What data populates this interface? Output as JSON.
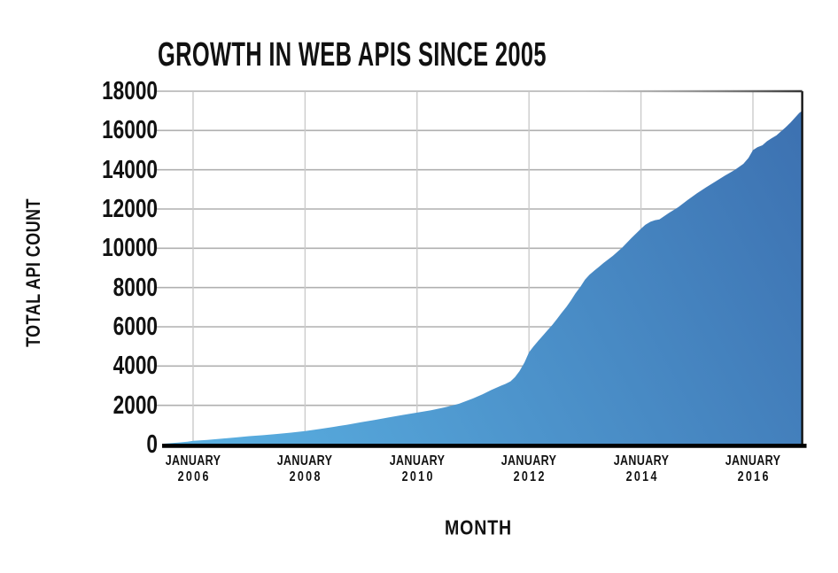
{
  "title": "GROWTH IN WEB APIS SINCE 2005",
  "chart_data": {
    "type": "area",
    "title": "GROWTH IN WEB APIS SINCE 2005",
    "xlabel": "MONTH",
    "ylabel": "TOTAL API COUNT",
    "ylim": [
      0,
      18000
    ],
    "y_ticks": [
      0,
      2000,
      4000,
      6000,
      8000,
      10000,
      12000,
      14000,
      16000,
      18000
    ],
    "x_ticks": [
      {
        "line1": "JANUARY",
        "line2": "2006",
        "value": 2006
      },
      {
        "line1": "JANUARY",
        "line2": "2008",
        "value": 2008
      },
      {
        "line1": "JANUARY",
        "line2": "2010",
        "value": 2010
      },
      {
        "line1": "JANUARY",
        "line2": "2012",
        "value": 2012
      },
      {
        "line1": "JANUARY",
        "line2": "2014",
        "value": 2014
      },
      {
        "line1": "JANUARY",
        "line2": "2016",
        "value": 2016
      }
    ],
    "x_range_years": [
      2005.45,
      2016.88
    ],
    "grid": true,
    "legend": "none",
    "series": [
      {
        "name": "Total API Count",
        "points": [
          [
            2005.45,
            40
          ],
          [
            2005.6,
            70
          ],
          [
            2005.75,
            110
          ],
          [
            2005.9,
            150
          ],
          [
            2006.0,
            190
          ],
          [
            2006.25,
            240
          ],
          [
            2006.5,
            300
          ],
          [
            2006.75,
            360
          ],
          [
            2007.0,
            430
          ],
          [
            2007.25,
            480
          ],
          [
            2007.5,
            540
          ],
          [
            2007.75,
            610
          ],
          [
            2008.0,
            690
          ],
          [
            2008.25,
            790
          ],
          [
            2008.5,
            900
          ],
          [
            2008.75,
            1010
          ],
          [
            2009.0,
            1140
          ],
          [
            2009.25,
            1260
          ],
          [
            2009.5,
            1390
          ],
          [
            2009.75,
            1510
          ],
          [
            2010.0,
            1630
          ],
          [
            2010.25,
            1750
          ],
          [
            2010.5,
            1900
          ],
          [
            2010.75,
            2080
          ],
          [
            2011.0,
            2350
          ],
          [
            2011.17,
            2560
          ],
          [
            2011.33,
            2790
          ],
          [
            2011.5,
            3000
          ],
          [
            2011.58,
            3090
          ],
          [
            2011.67,
            3220
          ],
          [
            2011.75,
            3440
          ],
          [
            2011.83,
            3740
          ],
          [
            2011.92,
            4180
          ],
          [
            2012.0,
            4700
          ],
          [
            2012.08,
            5000
          ],
          [
            2012.17,
            5300
          ],
          [
            2012.25,
            5560
          ],
          [
            2012.33,
            5820
          ],
          [
            2012.42,
            6110
          ],
          [
            2012.5,
            6400
          ],
          [
            2012.58,
            6700
          ],
          [
            2012.67,
            7020
          ],
          [
            2012.75,
            7350
          ],
          [
            2012.83,
            7700
          ],
          [
            2012.92,
            8050
          ],
          [
            2013.0,
            8400
          ],
          [
            2013.08,
            8650
          ],
          [
            2013.17,
            8870
          ],
          [
            2013.25,
            9060
          ],
          [
            2013.33,
            9250
          ],
          [
            2013.5,
            9620
          ],
          [
            2013.67,
            10050
          ],
          [
            2013.83,
            10520
          ],
          [
            2014.0,
            11000
          ],
          [
            2014.08,
            11200
          ],
          [
            2014.17,
            11350
          ],
          [
            2014.25,
            11430
          ],
          [
            2014.33,
            11470
          ],
          [
            2014.5,
            11800
          ],
          [
            2014.67,
            12100
          ],
          [
            2014.83,
            12450
          ],
          [
            2015.0,
            12800
          ],
          [
            2015.17,
            13120
          ],
          [
            2015.33,
            13400
          ],
          [
            2015.5,
            13700
          ],
          [
            2015.67,
            13980
          ],
          [
            2015.83,
            14300
          ],
          [
            2015.92,
            14600
          ],
          [
            2016.0,
            15000
          ],
          [
            2016.08,
            15150
          ],
          [
            2016.17,
            15250
          ],
          [
            2016.25,
            15450
          ],
          [
            2016.33,
            15600
          ],
          [
            2016.42,
            15750
          ],
          [
            2016.5,
            15950
          ],
          [
            2016.58,
            16150
          ],
          [
            2016.67,
            16400
          ],
          [
            2016.75,
            16650
          ],
          [
            2016.83,
            16900
          ],
          [
            2016.88,
            17000
          ]
        ]
      }
    ],
    "colors": {
      "area_gradient_start": "#5bb2e3",
      "area_gradient_end": "#3c70b0",
      "axis": "#000000",
      "h_gridline": "#b0b0b0",
      "v_gridline": "#cbcbcb",
      "text": "#111111"
    }
  }
}
